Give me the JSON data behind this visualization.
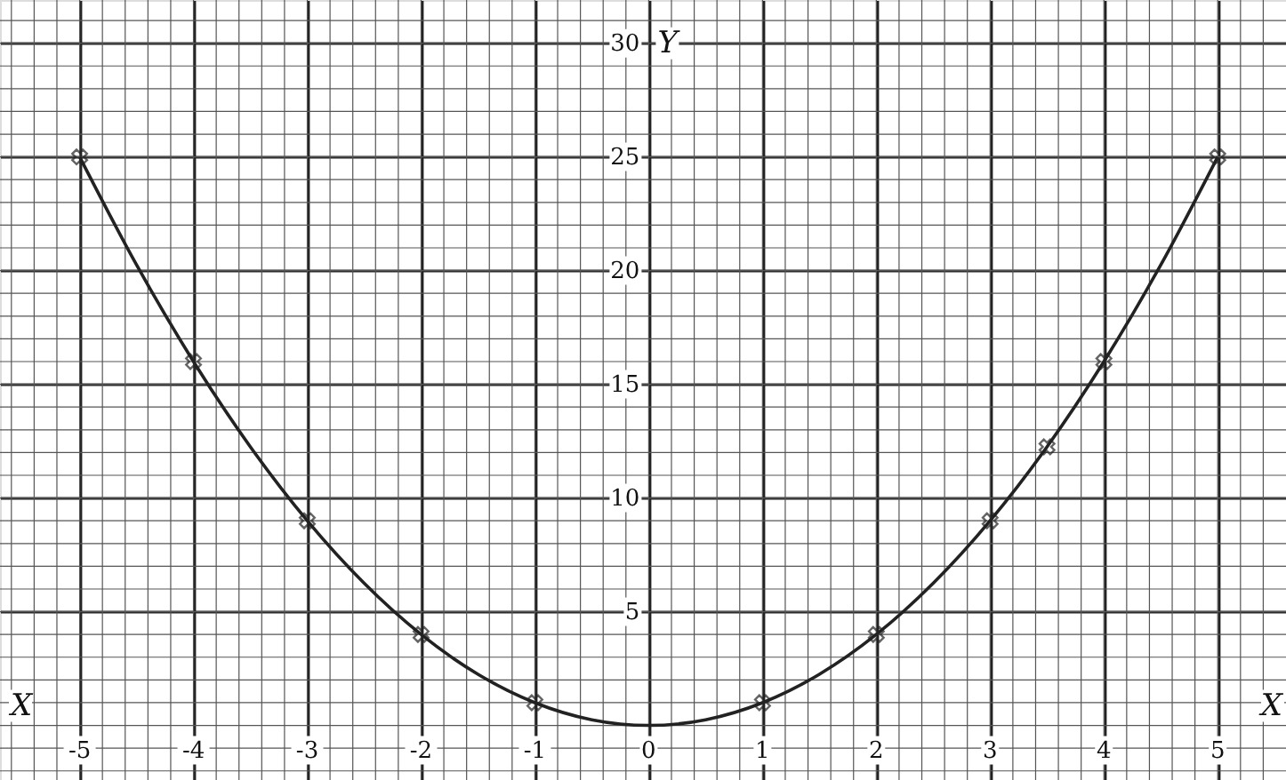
{
  "chart_data": {
    "type": "line",
    "xlabel": "X",
    "ylabel": "Y",
    "annotations": [
      "X"
    ],
    "xlim": [
      -5.7,
      5.6
    ],
    "ylim": [
      -2.4,
      31.9
    ],
    "xticks": [
      -5,
      -4,
      -3,
      -2,
      -1,
      0,
      1,
      2,
      3,
      4,
      5
    ],
    "yticks": [
      5,
      10,
      15,
      20,
      25,
      30
    ],
    "grid": true,
    "series": [
      {
        "color": "#222222",
        "marker": "none",
        "line_style": "solid",
        "x": [
          -5,
          -4.5,
          -4,
          -3.5,
          -3,
          -2.5,
          -2,
          -1.5,
          -1,
          -0.5,
          0,
          0.5,
          1,
          1.5,
          2,
          2.5,
          3,
          3.5,
          4,
          4.5,
          5
        ],
        "values": [
          25,
          20.25,
          16,
          12.25,
          9,
          6.25,
          4,
          2.25,
          1,
          0.25,
          0,
          0.25,
          1,
          2.25,
          4,
          6.25,
          9,
          12.25,
          16,
          20.25,
          25
        ]
      },
      {
        "type": "scatter",
        "color": "#222222",
        "marker": "cross",
        "x": [
          -5,
          -4,
          -3,
          -2,
          -1,
          1,
          2,
          3,
          3.5,
          4,
          5
        ],
        "values": [
          25,
          16,
          9,
          4,
          1,
          1,
          4,
          9,
          12.25,
          16,
          25
        ]
      }
    ]
  }
}
